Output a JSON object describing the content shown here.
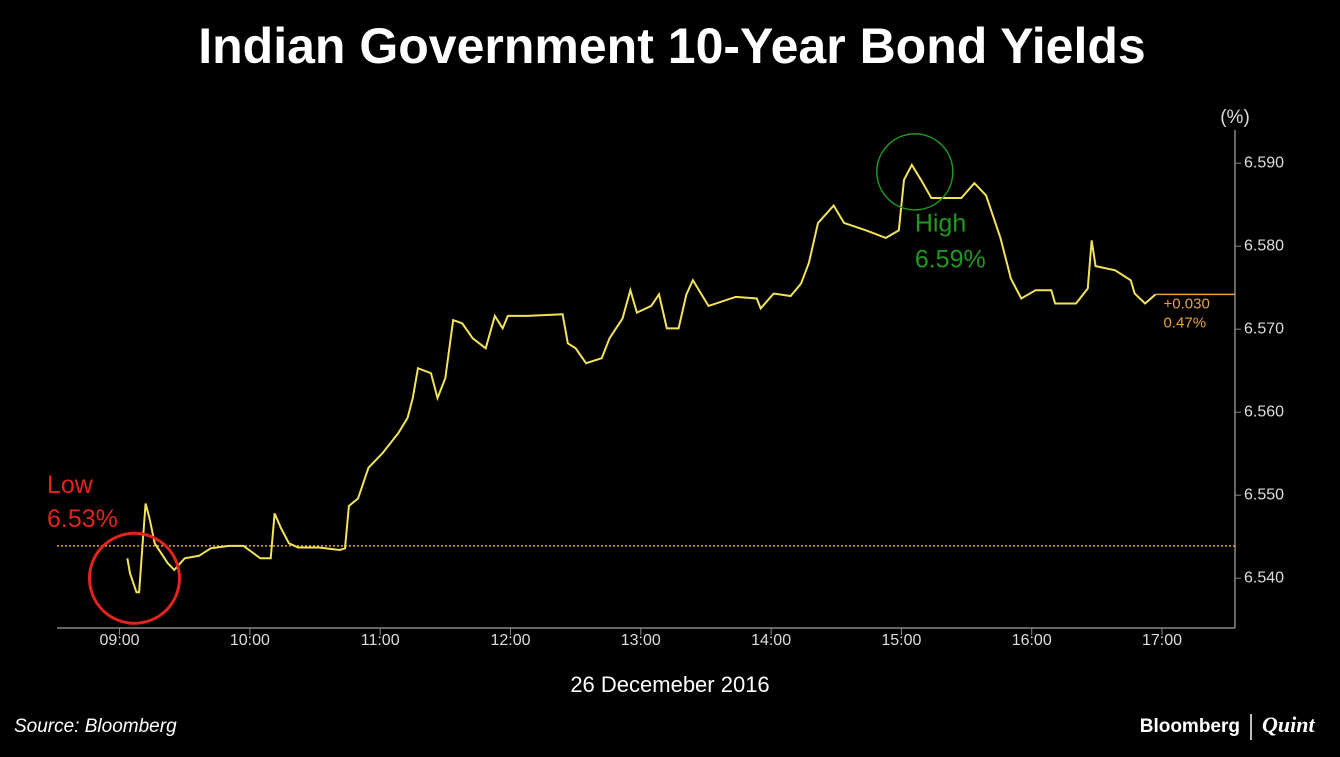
{
  "chart_data": {
    "type": "line",
    "title": "Indian Government 10-Year Bond Yields",
    "y_axis_label": "(%)",
    "x_axis_label": "26 Decemeber 2016",
    "source": "Source: Bloomberg",
    "brand": [
      "Bloomberg",
      "Quint"
    ],
    "x": [
      9.06,
      9.08,
      9.13,
      9.15,
      9.18,
      9.2,
      9.23,
      9.27,
      9.32,
      9.37,
      9.42,
      9.5,
      9.61,
      9.7,
      9.84,
      9.95,
      10.08,
      10.16,
      10.19,
      10.24,
      10.3,
      10.37,
      10.53,
      10.69,
      10.73,
      10.76,
      10.83,
      10.91,
      11.02,
      11.14,
      11.21,
      11.25,
      11.29,
      11.39,
      11.44,
      11.5,
      11.56,
      11.63,
      11.71,
      11.81,
      11.88,
      11.94,
      11.98,
      12.13,
      12.4,
      12.44,
      12.5,
      12.58,
      12.7,
      12.76,
      12.86,
      12.92,
      12.97,
      13.08,
      13.14,
      13.2,
      13.29,
      13.35,
      13.4,
      13.52,
      13.73,
      13.89,
      13.92,
      14.02,
      14.15,
      14.23,
      14.29,
      14.36,
      14.48,
      14.56,
      14.73,
      14.88,
      14.98,
      15.02,
      15.08,
      15.15,
      15.23,
      15.34,
      15.46,
      15.56,
      15.65,
      15.76,
      15.84,
      15.92,
      16.03,
      16.15,
      16.18,
      16.34,
      16.43,
      16.46,
      16.49,
      16.64,
      16.76,
      16.79,
      16.87,
      16.95
    ],
    "series": [
      {
        "color": "#f2e35a",
        "values": [
          6.5424,
          6.5406,
          6.5383,
          6.5383,
          6.5448,
          6.549,
          6.5472,
          6.5442,
          6.543,
          6.5418,
          6.541,
          6.5424,
          6.5427,
          6.5436,
          6.5439,
          6.5439,
          6.5424,
          6.5424,
          6.5478,
          6.546,
          6.5442,
          6.5437,
          6.5437,
          6.5434,
          6.5436,
          6.5487,
          6.5496,
          6.5533,
          6.5551,
          6.5575,
          6.5593,
          6.5617,
          6.5653,
          6.5647,
          6.5617,
          6.5641,
          6.5711,
          6.5707,
          6.5689,
          6.5677,
          6.5716,
          6.5701,
          6.5716,
          6.5716,
          6.5718,
          6.5683,
          6.5677,
          6.5659,
          6.5665,
          6.5689,
          6.5713,
          6.5747,
          6.572,
          6.5728,
          6.5742,
          6.5701,
          6.5701,
          6.5742,
          6.5759,
          6.5728,
          6.5739,
          6.5737,
          6.5725,
          6.5743,
          6.574,
          6.5755,
          6.578,
          6.5828,
          6.5849,
          6.5828,
          6.5819,
          6.581,
          6.5819,
          6.588,
          6.5898,
          6.588,
          6.5858,
          6.5858,
          6.5858,
          6.5876,
          6.5861,
          6.581,
          6.5761,
          6.5737,
          6.5747,
          6.5747,
          6.5731,
          6.5731,
          6.5749,
          6.5807,
          6.5776,
          6.5771,
          6.5759,
          6.5743,
          6.5731,
          6.5742
        ]
      }
    ],
    "xlim": [
      8.52,
      17.56
    ],
    "xticks": [
      {
        "value": 9,
        "label": "09:00"
      },
      {
        "value": 10,
        "label": "10:00"
      },
      {
        "value": 11,
        "label": "11:00"
      },
      {
        "value": 12,
        "label": "12:00"
      },
      {
        "value": 13,
        "label": "13:00"
      },
      {
        "value": 14,
        "label": "14:00"
      },
      {
        "value": 15,
        "label": "15:00"
      },
      {
        "value": 16,
        "label": "16:00"
      },
      {
        "value": 17,
        "label": "17:00"
      }
    ],
    "ylim": [
      6.534,
      6.594
    ],
    "yticks": [
      {
        "value": 6.54,
        "label": "6.540"
      },
      {
        "value": 6.55,
        "label": "6.550"
      },
      {
        "value": 6.56,
        "label": "6.560"
      },
      {
        "value": 6.57,
        "label": "6.570"
      },
      {
        "value": 6.58,
        "label": "6.580"
      },
      {
        "value": 6.59,
        "label": "6.590"
      }
    ],
    "reference_line": {
      "value": 6.5439,
      "color": "#e8a33a"
    },
    "last_change": {
      "labels": [
        "+0.030",
        "0.47%"
      ],
      "color": "#e8a33a"
    },
    "low": {
      "labels": [
        "Low",
        "6.53%"
      ],
      "color": "#e3241c"
    },
    "high": {
      "labels": [
        "High",
        "6.59%"
      ],
      "color": "#1f9a1f"
    }
  }
}
